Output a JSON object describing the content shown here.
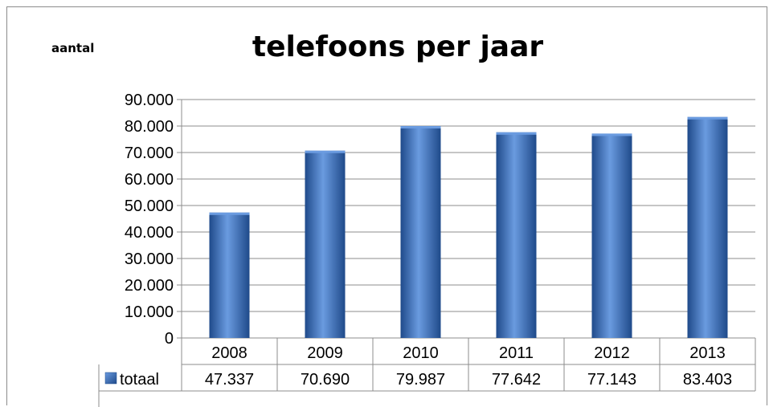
{
  "chart_data": {
    "type": "bar",
    "title": "telefoons per jaar",
    "ylabel": "aantal",
    "xlabel": "",
    "categories": [
      "2008",
      "2009",
      "2010",
      "2011",
      "2012",
      "2013"
    ],
    "series": [
      {
        "name": "totaal",
        "values": [
          47337,
          70690,
          79987,
          77642,
          77143,
          83403
        ]
      }
    ],
    "value_labels": [
      "47.337",
      "70.690",
      "79.987",
      "77.642",
      "77.143",
      "83.403"
    ],
    "ylim": [
      0,
      90000
    ],
    "yticks": [
      0,
      10000,
      20000,
      30000,
      40000,
      50000,
      60000,
      70000,
      80000,
      90000
    ],
    "ytick_labels": [
      "0",
      "10.000",
      "20.000",
      "30.000",
      "40.000",
      "50.000",
      "60.000",
      "70.000",
      "80.000",
      "90.000"
    ],
    "grid": true,
    "legend": "data-table",
    "bar_color": "#3a6fbf",
    "bar_color_light": "#6a9be0",
    "bar_color_dark": "#1f4a8a"
  }
}
